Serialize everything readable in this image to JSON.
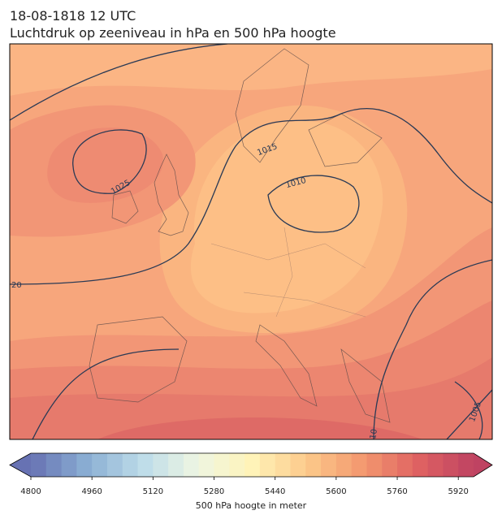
{
  "header": {
    "date": "18-08-1818 12 UTC",
    "title": "Luchtdruk op zeeniveau in hPa en 500 hPa hoogte"
  },
  "map": {
    "contour_labels": [
      "1025",
      "1015",
      "1010",
      "20",
      "1005",
      "10"
    ]
  },
  "colorbar": {
    "label": "500 hPa hoogte in meter",
    "range": [
      4800,
      5960
    ],
    "step": 40,
    "ticks": [
      4800,
      4960,
      5120,
      5280,
      5440,
      5600,
      5760,
      5920
    ],
    "colors": [
      "#6772b3",
      "#8aaed3",
      "#bcdbe9",
      "#eef6e2",
      "#fff3b8",
      "#fcc98a",
      "#f3986f",
      "#df6262",
      "#bf4362"
    ]
  }
}
